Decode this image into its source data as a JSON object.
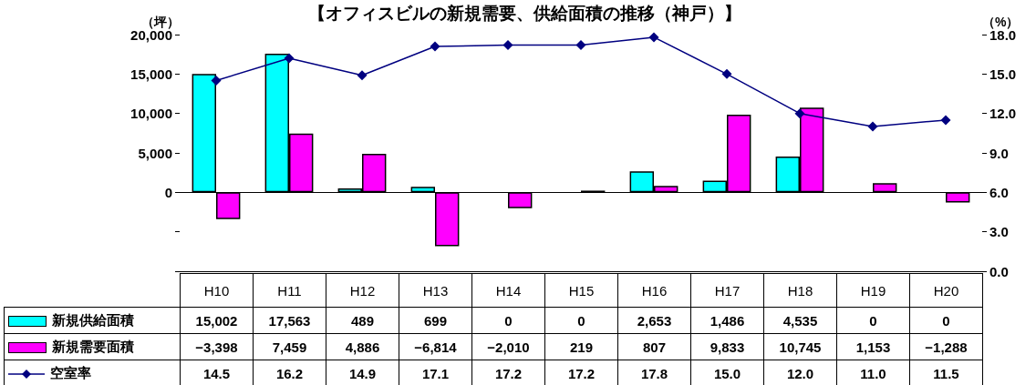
{
  "chart_data": {
    "type": "bar",
    "title": "【オフィスビルの新規需要、供給面積の推移（神戸）】",
    "ylabel": "（坪）",
    "y2label": "（%）",
    "categories": [
      "H10",
      "H11",
      "H12",
      "H13",
      "H14",
      "H15",
      "H16",
      "H17",
      "H18",
      "H19",
      "H20"
    ],
    "series": [
      {
        "name": "新規供給面積",
        "color": "#00ffff",
        "values": [
          15002,
          17563,
          489,
          699,
          0,
          0,
          2653,
          1486,
          4535,
          0,
          0
        ],
        "value_labels": [
          "15,002",
          "17,563",
          "489",
          "699",
          "0",
          "0",
          "2,653",
          "1,486",
          "4,535",
          "0",
          "0"
        ]
      },
      {
        "name": "新規需要面積",
        "color": "#ff00ff",
        "values": [
          -3398,
          7459,
          4886,
          -6814,
          -2010,
          219,
          807,
          9833,
          10745,
          1153,
          -1288
        ],
        "value_labels": [
          "−3,398",
          "7,459",
          "4,886",
          "−6,814",
          "−2,010",
          "219",
          "807",
          "9,833",
          "10,745",
          "1,153",
          "−1,288"
        ]
      },
      {
        "name": "空室率",
        "type": "line",
        "axis": "y2",
        "color": "#000080",
        "marker": "diamond",
        "values": [
          14.5,
          16.2,
          14.9,
          17.1,
          17.2,
          17.2,
          17.8,
          15.0,
          12.0,
          11.0,
          11.5
        ],
        "value_labels": [
          "14.5",
          "16.2",
          "14.9",
          "17.1",
          "17.2",
          "17.2",
          "17.8",
          "15.0",
          "12.0",
          "11.0",
          "11.5"
        ]
      }
    ],
    "ylim": [
      -10000,
      20000
    ],
    "yticks": [
      {
        "value": -10000,
        "label": null
      },
      {
        "value": -5000,
        "label": null
      },
      0,
      {
        "value": 5000,
        "label": "5,000"
      },
      {
        "value": 10000,
        "label": "10,000"
      },
      {
        "value": 15000,
        "label": "15,000"
      },
      {
        "value": 20000,
        "label": "20,000"
      }
    ],
    "y2lim": [
      0,
      18
    ],
    "y2ticks": [
      {
        "value": 0,
        "label": "0.0"
      },
      {
        "value": 3,
        "label": "3.0"
      },
      {
        "value": 6,
        "label": "6.0"
      },
      {
        "value": 9,
        "label": "9.0"
      },
      {
        "value": 12,
        "label": "12.0"
      },
      {
        "value": 15,
        "label": "15.0"
      },
      {
        "value": 18,
        "label": "18.0"
      }
    ],
    "legend": "bottom left"
  }
}
